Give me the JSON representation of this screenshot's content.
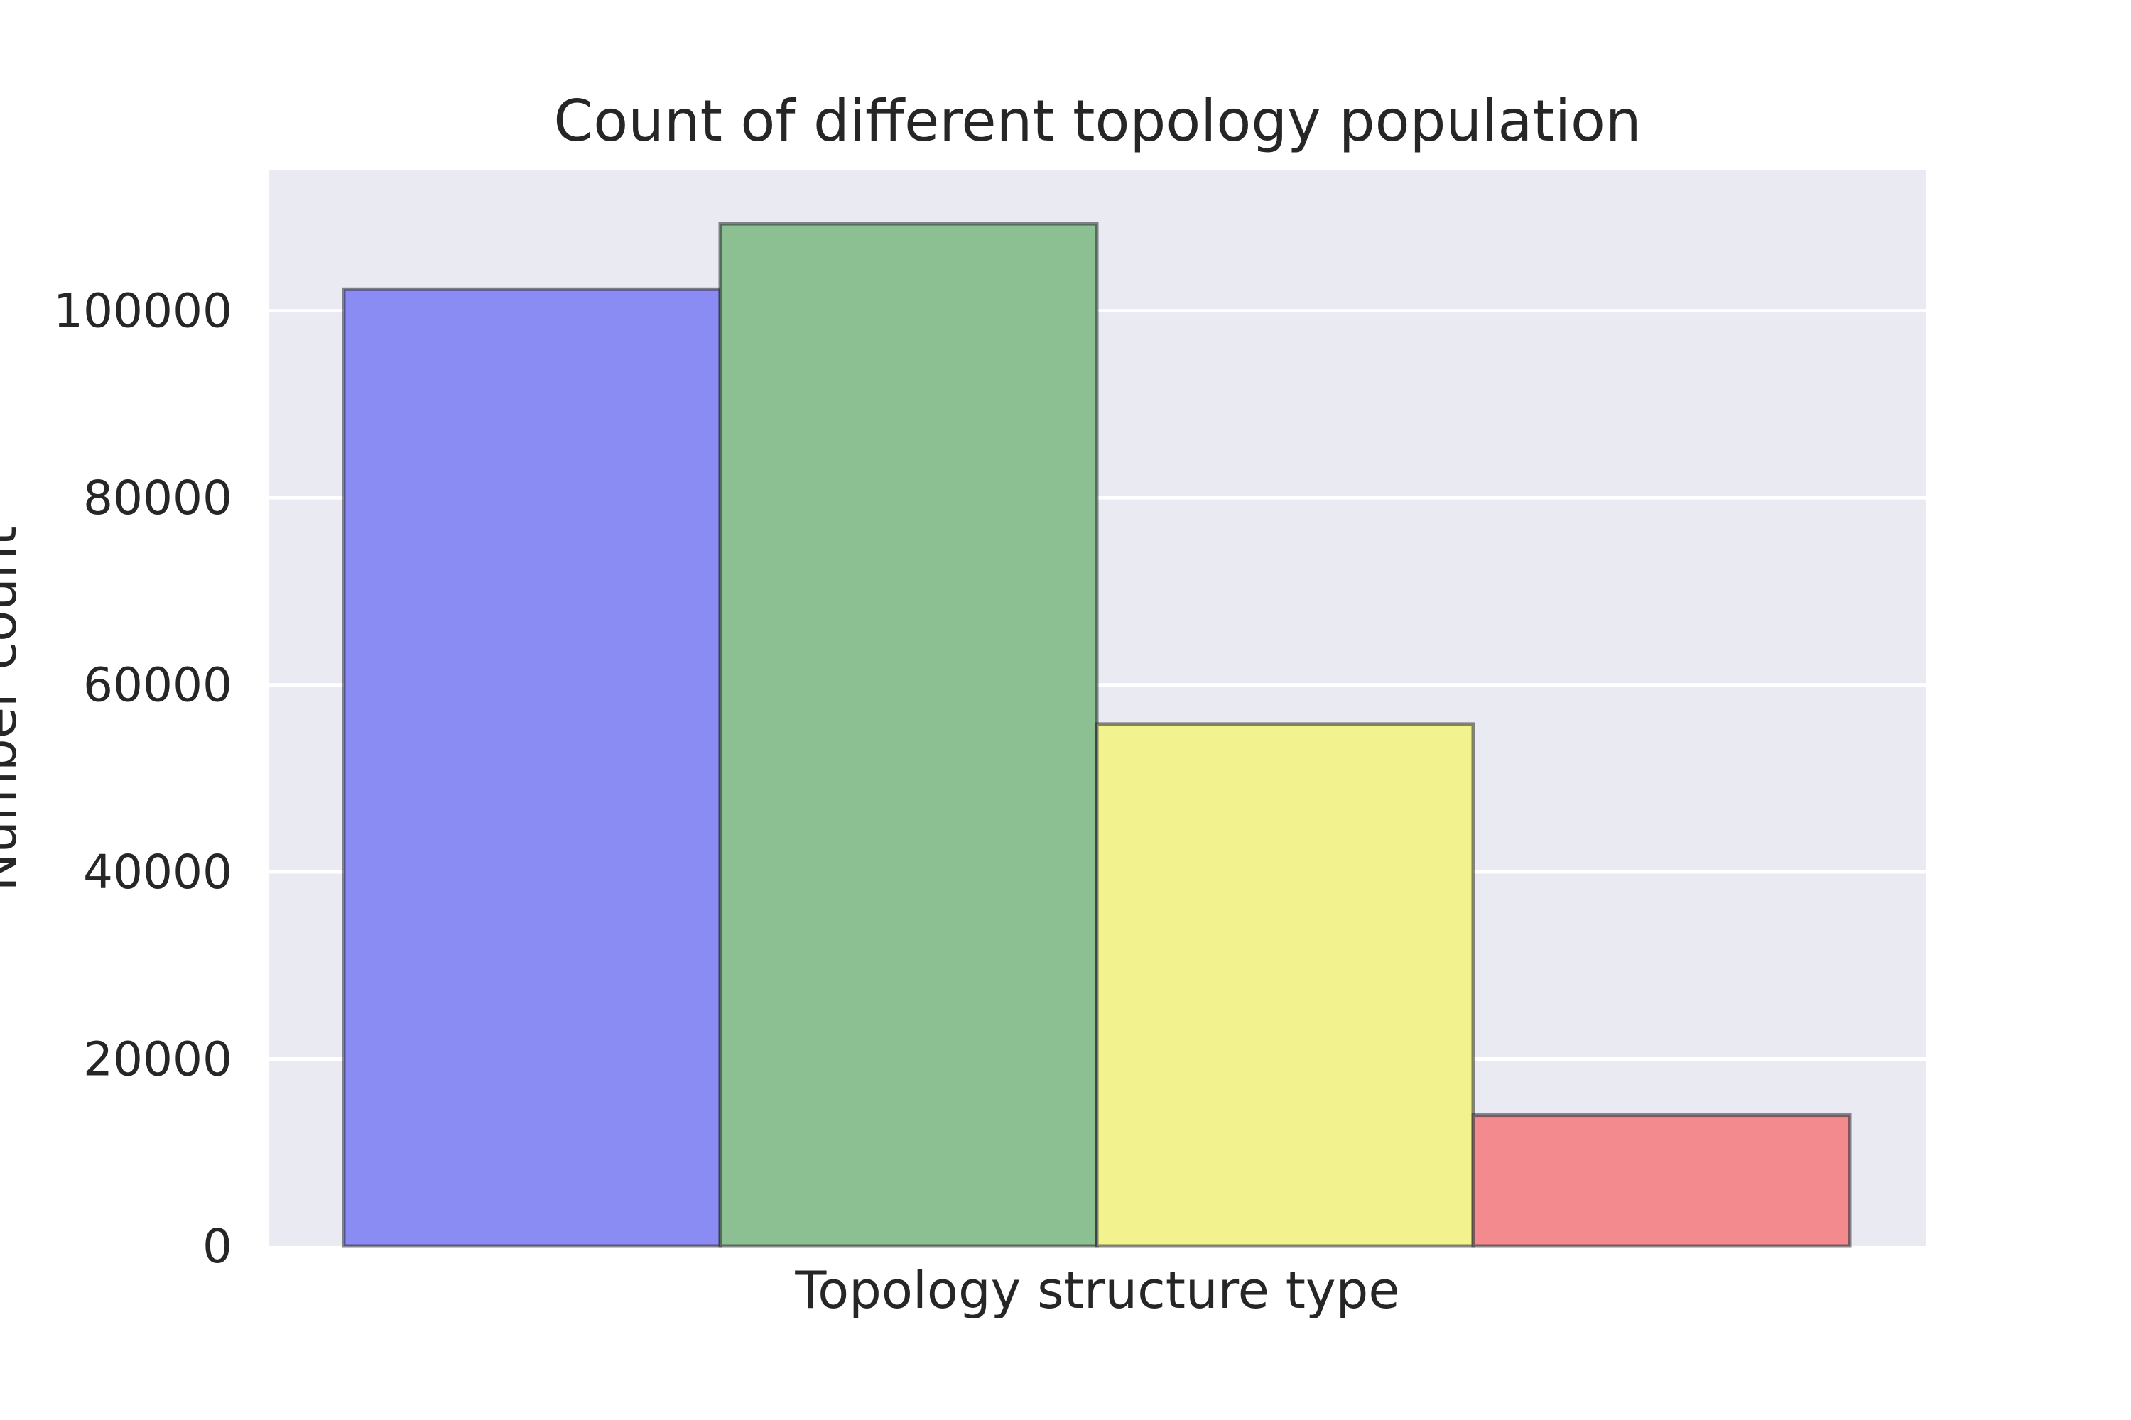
{
  "chart_data": {
    "type": "bar",
    "title": "Count of different topology population",
    "xlabel": "Topology structure type",
    "ylabel": "Number count",
    "ylim": [
      0,
      115000
    ],
    "yticks": [
      "0",
      "20000",
      "40000",
      "60000",
      "80000",
      "100000"
    ],
    "ytick_values": [
      0,
      20000,
      40000,
      60000,
      80000,
      100000
    ],
    "grid": true,
    "legend": "none",
    "values": [
      102300,
      109300,
      55800,
      14000
    ],
    "colors": [
      "#8a8cf4",
      "#8cbf91",
      "#f2f28e",
      "#f28a8e"
    ]
  }
}
